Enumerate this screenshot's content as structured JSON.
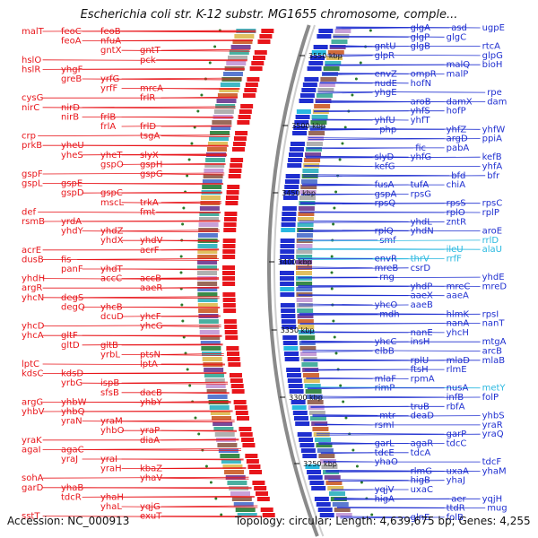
{
  "title": "Escherichia coli str. K-12 substr. MG1655 chromosome, comple...",
  "footer": {
    "accession": "Accession: NC_000913",
    "info": "Topology: circular; Length: 4,639,675 bp; Genes: 4,255"
  },
  "colors": {
    "reverse_strand": "#e8161b",
    "forward_strand": "#1f2fd0",
    "rna_genes": "#28b8e0",
    "backbone": "#8a8a8a",
    "gc_dots": "#2a7a2a"
  },
  "tick_marks": [
    {
      "label": "3550 kbp"
    },
    {
      "label": "3500 kbp"
    },
    {
      "label": "3450 kbp"
    },
    {
      "label": "3400 kbp"
    },
    {
      "label": "3350 kbp"
    },
    {
      "label": "3300 kbp"
    },
    {
      "label": "3250 kbp"
    }
  ],
  "reverse_labels": [
    "malT",
    "feoC",
    "feoB",
    "feoA",
    "nfuA",
    "gntX",
    "gntT",
    "pck",
    "hslO",
    "hslR",
    "yhgF",
    "greB",
    "yrfG",
    "yrfF",
    "mrcA",
    "frlR",
    "cysG",
    "nirC",
    "nirD",
    "nirB",
    "frlB",
    "frlA",
    "frlD",
    "tsgA",
    "crp",
    "prkB",
    "yheU",
    "yheS",
    "yheT",
    "slyX",
    "gspO",
    "gspH",
    "gspG",
    "gspF",
    "gspL",
    "gspE",
    "gspD",
    "gspC",
    "mscL",
    "trkA",
    "fmt",
    "def",
    "rsmB",
    "yrdA",
    "yhdY",
    "yhdZ",
    "yhdX",
    "yhdV",
    "acrF",
    "acrE",
    "dusB",
    "fis",
    "panF",
    "yhdT",
    "accC",
    "accB",
    "yhdH",
    "aaeR",
    "argR",
    "yhcN",
    "degS",
    "degQ",
    "yhcB",
    "dcuD",
    "yhcF",
    "yhcG",
    "yhcD",
    "yhcA",
    "gltF",
    "gltD",
    "gltB",
    "yrbL",
    "ptsN",
    "lptA",
    "lptC",
    "kdsC",
    "kdsD",
    "yrbG",
    "ispB",
    "sfsB",
    "dacB",
    "yhbY",
    "argG",
    "yhbW",
    "yhbV",
    "yhbQ",
    "yraN",
    "yraM",
    "yhbO",
    "yraP",
    "diaA",
    "yraK",
    "agaI",
    "agaC",
    "yraJ",
    "yraI",
    "yraH",
    "kbaZ",
    "yhaV",
    "sohA",
    "garD",
    "yhaB",
    "tdcR",
    "yhaH",
    "yhaL",
    "yqjG",
    "exuT",
    "sstT"
  ],
  "forward_labels": [
    "ugpE",
    "asd",
    "glgA",
    "glgC",
    "glgP",
    "glgB",
    "gntU",
    "rtcA",
    "glpR",
    "glpG",
    "bioH",
    "malQ",
    "malP",
    "ompR",
    "envZ",
    "hofN",
    "nudE",
    "yhgE",
    "rpe",
    "dam",
    "damX",
    "aroB",
    "hofP",
    "yhfS",
    "yhfT",
    "yhfU",
    "php",
    "yhfW",
    "yhfZ",
    "ppiA",
    "argD",
    "pabA",
    "fic",
    "yhfG",
    "slyD",
    "kefB",
    "kefG",
    "yhfA",
    "bfr",
    "bfd",
    "chiA",
    "tufA",
    "fusA",
    "rpsG",
    "gspA",
    "rpsQ",
    "rpsC",
    "rpsS",
    "rplP",
    "rplO",
    "zntR",
    "yhdL",
    "yhdN",
    "rplQ",
    "aroE",
    "smf",
    "rrlD",
    "alaU",
    "ileU",
    "rrfF",
    "thrV",
    "envR",
    "csrD",
    "mreB",
    "rng",
    "yhdE",
    "mreD",
    "mreC",
    "yhdP",
    "aaeA",
    "aaeX",
    "aaeB",
    "yhcO",
    "mdh",
    "rpsI",
    "hlmK",
    "nanT",
    "nanA",
    "yhcH",
    "nanE",
    "insH",
    "yhcC",
    "mtgA",
    "elbB",
    "arcB",
    "mlaB",
    "mlaD",
    "rplU",
    "rlmE",
    "ftsH",
    "rpmA",
    "mlaF",
    "rimP",
    "metY",
    "nusA",
    "folP",
    "infB",
    "rbfA",
    "truB",
    "deaD",
    "mtr",
    "yhbS",
    "rsmI",
    "yraR",
    "yraQ",
    "garP",
    "tdcC",
    "agaR",
    "garL",
    "tdcA",
    "tdcE",
    "yhaO",
    "tdcF",
    "yhaM",
    "uxaA",
    "rlmG",
    "yhaJ",
    "higB",
    "uxaC",
    "yqjV",
    "higA",
    "yqjH",
    "aer",
    "mug",
    "ttdR",
    "folB",
    "glnE"
  ]
}
